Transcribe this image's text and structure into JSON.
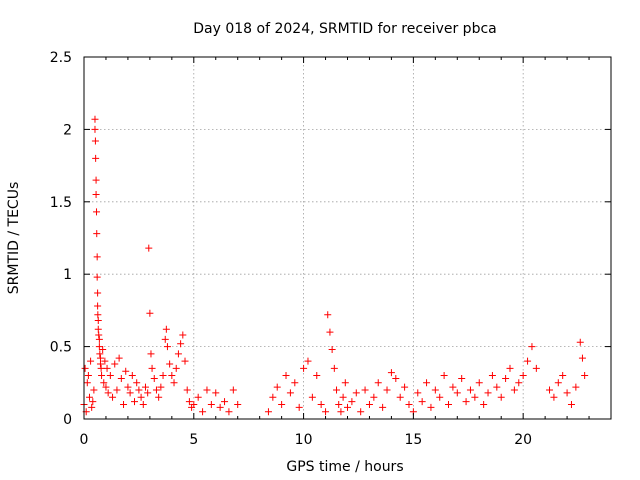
{
  "chart_data": {
    "type": "scatter",
    "title": "Day 018 of 2024, SRMTID for receiver pbca",
    "xlabel": "GPS time / hours",
    "ylabel": "SRMTID / TECUs",
    "xlim": [
      0,
      24
    ],
    "ylim": [
      0,
      2.5
    ],
    "xticks": [
      0,
      5,
      10,
      15,
      20
    ],
    "xtick_labels": [
      "0",
      "5",
      "10",
      "15",
      "20"
    ],
    "yticks": [
      0,
      0.5,
      1,
      1.5,
      2,
      2.5
    ],
    "ytick_labels": [
      "0",
      "0.5",
      "1",
      "1.5",
      "2",
      "2.5"
    ],
    "grid": true,
    "marker": "+",
    "color": "#ff0000",
    "series": [
      {
        "name": "SRMTID",
        "x": [
          0.0,
          0.05,
          0.1,
          0.15,
          0.2,
          0.25,
          0.3,
          0.35,
          0.4,
          0.45,
          0.5,
          0.5,
          0.52,
          0.53,
          0.55,
          0.55,
          0.57,
          0.58,
          0.6,
          0.6,
          0.62,
          0.62,
          0.63,
          0.65,
          0.65,
          0.67,
          0.7,
          0.7,
          0.72,
          0.75,
          0.75,
          0.78,
          0.8,
          0.85,
          0.9,
          0.95,
          1.0,
          1.05,
          1.1,
          1.2,
          1.3,
          1.4,
          1.5,
          1.6,
          1.7,
          1.8,
          1.9,
          2.0,
          2.1,
          2.2,
          2.3,
          2.4,
          2.5,
          2.6,
          2.7,
          2.8,
          2.9,
          2.95,
          3.0,
          3.05,
          3.1,
          3.2,
          3.3,
          3.4,
          3.5,
          3.6,
          3.7,
          3.75,
          3.8,
          3.9,
          4.0,
          4.1,
          4.2,
          4.3,
          4.4,
          4.5,
          4.6,
          4.7,
          4.8,
          4.9,
          5.0,
          5.2,
          5.4,
          5.6,
          5.8,
          6.0,
          6.2,
          6.4,
          6.6,
          6.8,
          7.0,
          8.4,
          8.6,
          8.8,
          9.0,
          9.2,
          9.4,
          9.6,
          9.8,
          10.0,
          10.2,
          10.4,
          10.6,
          10.8,
          11.0,
          11.1,
          11.2,
          11.3,
          11.4,
          11.5,
          11.6,
          11.7,
          11.8,
          11.9,
          12.0,
          12.2,
          12.4,
          12.6,
          12.8,
          13.0,
          13.2,
          13.4,
          13.6,
          13.8,
          14.0,
          14.2,
          14.4,
          14.6,
          14.8,
          15.0,
          15.2,
          15.4,
          15.6,
          15.8,
          16.0,
          16.2,
          16.4,
          16.6,
          16.8,
          17.0,
          17.2,
          17.4,
          17.6,
          17.8,
          18.0,
          18.2,
          18.4,
          18.6,
          18.8,
          19.0,
          19.2,
          19.4,
          19.6,
          19.8,
          20.0,
          20.2,
          20.4,
          20.6,
          21.2,
          21.4,
          21.6,
          21.8,
          22.0,
          22.2,
          22.4,
          22.6,
          22.7,
          22.8
        ],
        "y": [
          0.1,
          0.35,
          0.05,
          0.25,
          0.3,
          0.15,
          0.4,
          0.08,
          0.12,
          0.2,
          2.07,
          2.0,
          1.92,
          1.8,
          1.65,
          1.55,
          1.43,
          1.28,
          1.12,
          0.98,
          0.87,
          0.78,
          0.72,
          0.68,
          0.62,
          0.58,
          0.55,
          0.5,
          0.45,
          0.42,
          0.38,
          0.35,
          0.3,
          0.48,
          0.25,
          0.4,
          0.22,
          0.35,
          0.18,
          0.3,
          0.15,
          0.38,
          0.2,
          0.42,
          0.28,
          0.1,
          0.33,
          0.22,
          0.18,
          0.3,
          0.12,
          0.25,
          0.2,
          0.15,
          0.1,
          0.22,
          0.18,
          1.18,
          0.73,
          0.45,
          0.35,
          0.28,
          0.2,
          0.15,
          0.22,
          0.3,
          0.55,
          0.62,
          0.5,
          0.38,
          0.3,
          0.25,
          0.35,
          0.45,
          0.52,
          0.58,
          0.4,
          0.2,
          0.12,
          0.08,
          0.1,
          0.15,
          0.05,
          0.2,
          0.1,
          0.18,
          0.08,
          0.12,
          0.05,
          0.2,
          0.1,
          0.05,
          0.15,
          0.22,
          0.1,
          0.3,
          0.18,
          0.25,
          0.08,
          0.35,
          0.4,
          0.15,
          0.3,
          0.1,
          0.05,
          0.72,
          0.6,
          0.48,
          0.35,
          0.2,
          0.1,
          0.05,
          0.15,
          0.25,
          0.08,
          0.12,
          0.18,
          0.05,
          0.2,
          0.1,
          0.15,
          0.25,
          0.08,
          0.2,
          0.32,
          0.28,
          0.15,
          0.22,
          0.1,
          0.05,
          0.18,
          0.12,
          0.25,
          0.08,
          0.2,
          0.15,
          0.3,
          0.1,
          0.22,
          0.18,
          0.28,
          0.12,
          0.2,
          0.15,
          0.25,
          0.1,
          0.18,
          0.3,
          0.22,
          0.15,
          0.28,
          0.35,
          0.2,
          0.25,
          0.3,
          0.4,
          0.5,
          0.35,
          0.2,
          0.15,
          0.25,
          0.3,
          0.18,
          0.1,
          0.22,
          0.53,
          0.42,
          0.3
        ]
      }
    ]
  }
}
